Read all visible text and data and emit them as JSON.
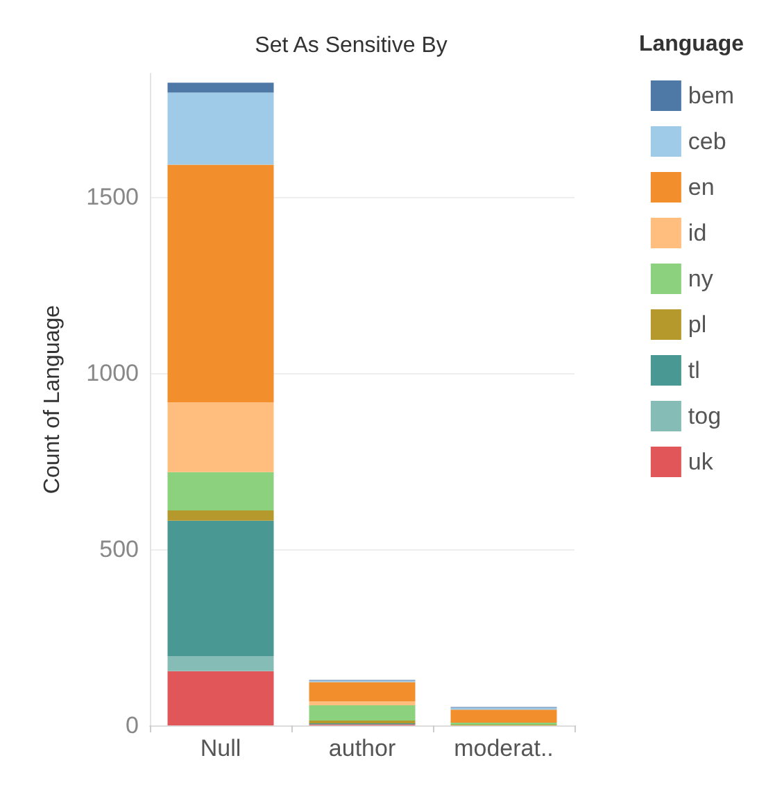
{
  "chart_data": {
    "type": "bar",
    "title": "Set As Sensitive By",
    "ylabel": "Count of Language",
    "legend_title": "Language",
    "categories": [
      "Null",
      "author",
      "moderat.."
    ],
    "stacked": true,
    "series": [
      {
        "name": "uk",
        "color": "#e15759",
        "values": [
          154,
          3,
          0
        ]
      },
      {
        "name": "tog",
        "color": "#86bcb6",
        "values": [
          42,
          0,
          0
        ]
      },
      {
        "name": "tl",
        "color": "#499894",
        "values": [
          385,
          3,
          0
        ]
      },
      {
        "name": "pl",
        "color": "#b6992d",
        "values": [
          29,
          8,
          2
        ]
      },
      {
        "name": "ny",
        "color": "#8cd17d",
        "values": [
          109,
          43,
          6
        ]
      },
      {
        "name": "id",
        "color": "#ffbe7d",
        "values": [
          198,
          11,
          0
        ]
      },
      {
        "name": "en",
        "color": "#f28e2b",
        "values": [
          674,
          55,
          37
        ]
      },
      {
        "name": "ceb",
        "color": "#a0cbe8",
        "values": [
          205,
          4,
          5
        ]
      },
      {
        "name": "bem",
        "color": "#4e79a7",
        "values": [
          28,
          2,
          2
        ]
      }
    ],
    "ylim": [
      0,
      1850
    ],
    "yticks": [
      0,
      500,
      1000,
      1500
    ],
    "grid": "y",
    "legend": "right"
  }
}
